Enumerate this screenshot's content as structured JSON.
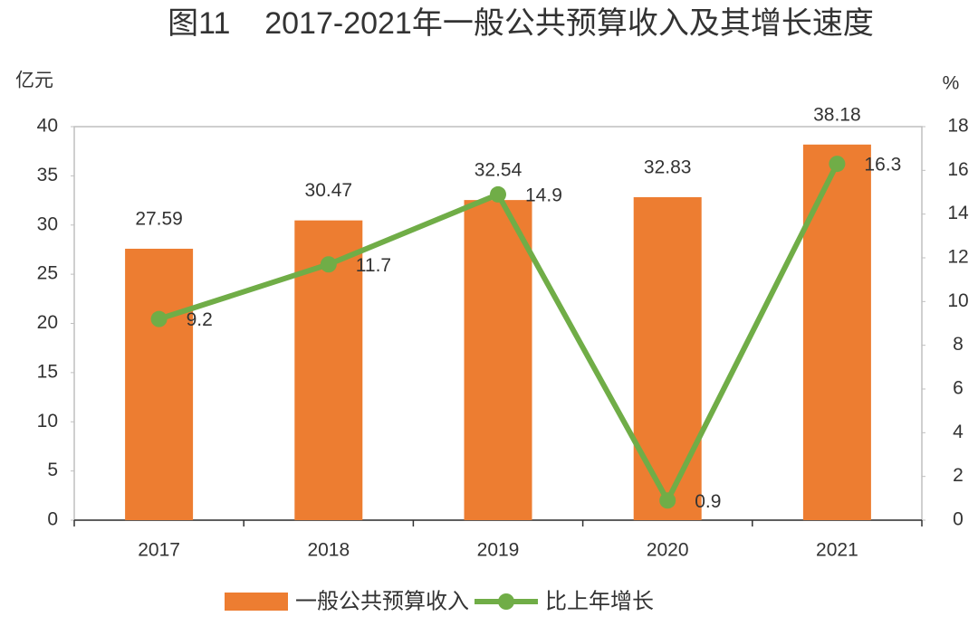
{
  "chart_data": {
    "type": "bar_line",
    "title": "图11    2017-2021年一般公共预算收入及其增长速度",
    "y_label": "亿元",
    "y2_label": "%",
    "categories": [
      "2017",
      "2018",
      "2019",
      "2020",
      "2021"
    ],
    "series": [
      {
        "name": "一般公共预算收入",
        "type": "bar",
        "color": "#ED7D31",
        "values": [
          27.59,
          30.47,
          32.54,
          32.83,
          38.18
        ]
      },
      {
        "name": "比上年增长",
        "type": "line",
        "axis": "y2",
        "color": "#70AD47",
        "values": [
          9.2,
          11.7,
          14.9,
          0.9,
          16.3
        ]
      }
    ],
    "ylim": [
      0,
      40
    ],
    "yticks": [
      0,
      5,
      10,
      15,
      20,
      25,
      30,
      35,
      40
    ],
    "y2lim": [
      0,
      18
    ],
    "y2ticks": [
      0,
      2,
      4,
      6,
      8,
      10,
      12,
      14,
      16,
      18
    ],
    "grid": false,
    "legend": "bottom"
  }
}
